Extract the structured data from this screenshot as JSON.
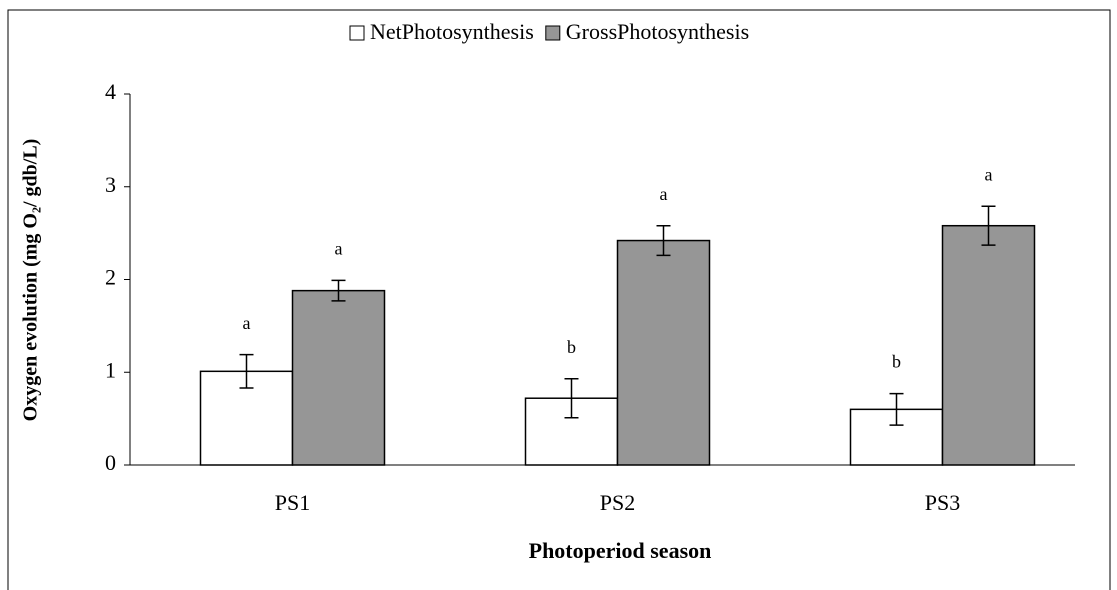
{
  "chart_data": {
    "type": "bar",
    "xlabel": "Photoperiod season",
    "ylabel": "Oxygen evolution (mg O₂/ gdb/L)",
    "categories": [
      "PS1",
      "PS2",
      "PS3"
    ],
    "series": [
      {
        "name": "NetPhotosynthesis",
        "color": "#ffffff",
        "values": [
          1.01,
          0.72,
          0.6
        ],
        "errors": [
          0.18,
          0.21,
          0.17
        ],
        "letters": [
          "a",
          "b",
          "b"
        ]
      },
      {
        "name": "GrossPhotosynthesis",
        "color": "#969696",
        "values": [
          1.88,
          2.42,
          2.58
        ],
        "errors": [
          0.11,
          0.16,
          0.21
        ],
        "letters": [
          "a",
          "a",
          "a"
        ]
      }
    ],
    "ylim": [
      0,
      4
    ],
    "yticks": [
      0,
      1,
      2,
      3,
      4
    ],
    "grid": false,
    "legend": "top"
  }
}
